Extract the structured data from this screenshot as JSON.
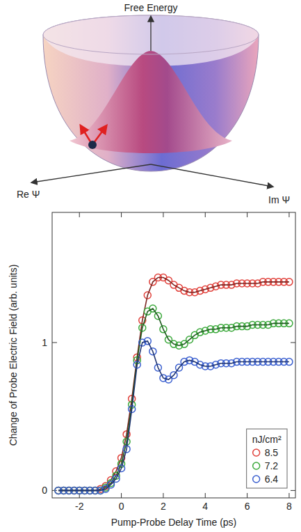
{
  "illustration": {
    "title": "Free Energy",
    "x_label": "Re Ψ",
    "y_label": "Im Ψ"
  },
  "chart_data": {
    "type": "line",
    "x_label": "Pump-Probe Delay Time (ps)",
    "y_label": "Change of Probe Electric Field (arb. units)",
    "x": [
      -3,
      -2.75,
      -2.5,
      -2.25,
      -2,
      -1.75,
      -1.5,
      -1.25,
      -1,
      -0.75,
      -0.5,
      -0.25,
      0,
      0.25,
      0.5,
      0.75,
      1,
      1.25,
      1.5,
      1.75,
      2,
      2.25,
      2.5,
      2.75,
      3,
      3.25,
      3.5,
      3.75,
      4,
      4.25,
      4.5,
      4.75,
      5,
      5.25,
      5.5,
      5.75,
      6,
      6.25,
      6.5,
      6.75,
      7,
      7.25,
      7.5,
      7.75,
      8
    ],
    "series": [
      {
        "name": "8.5",
        "color": "#e0403a",
        "marker": "circle",
        "line_style": "solid",
        "values": [
          0,
          0,
          0,
          0,
          0,
          0,
          0,
          0,
          0.01,
          0.03,
          0.07,
          0.13,
          0.22,
          0.38,
          0.62,
          0.9,
          1.15,
          1.32,
          1.41,
          1.44,
          1.44,
          1.42,
          1.39,
          1.37,
          1.35,
          1.34,
          1.34,
          1.35,
          1.36,
          1.37,
          1.38,
          1.39,
          1.39,
          1.39,
          1.4,
          1.4,
          1.4,
          1.4,
          1.4,
          1.41,
          1.41,
          1.41,
          1.41,
          1.41,
          1.41
        ]
      },
      {
        "name": "7.2",
        "color": "#3aa83a",
        "marker": "circle",
        "line_style": "solid",
        "values": [
          0,
          0,
          0,
          0,
          0,
          0,
          0,
          0,
          0,
          0.02,
          0.05,
          0.1,
          0.18,
          0.33,
          0.58,
          0.88,
          1.1,
          1.21,
          1.23,
          1.18,
          1.09,
          1.02,
          0.99,
          0.98,
          0.99,
          1.02,
          1.05,
          1.07,
          1.08,
          1.09,
          1.09,
          1.1,
          1.1,
          1.1,
          1.11,
          1.11,
          1.11,
          1.12,
          1.12,
          1.12,
          1.12,
          1.13,
          1.13,
          1.13,
          1.13
        ]
      },
      {
        "name": "6.4",
        "color": "#3a5fcf",
        "marker": "circle",
        "line_style": "solid",
        "values": [
          0,
          0,
          0,
          0,
          0,
          0,
          0,
          0,
          0,
          0.01,
          0.04,
          0.08,
          0.15,
          0.28,
          0.55,
          0.85,
          1.0,
          1.01,
          0.94,
          0.83,
          0.76,
          0.75,
          0.78,
          0.83,
          0.87,
          0.88,
          0.87,
          0.85,
          0.84,
          0.84,
          0.85,
          0.86,
          0.86,
          0.86,
          0.87,
          0.87,
          0.87,
          0.87,
          0.87,
          0.87,
          0.87,
          0.87,
          0.87,
          0.87,
          0.87
        ]
      }
    ],
    "legend_title": "nJ/cm²",
    "legend": "lower right",
    "grid": false,
    "xlim": [
      -3.3,
      8.3
    ],
    "ylim": [
      -0.05,
      1.88
    ],
    "xticks": [
      -2,
      0,
      2,
      4,
      6,
      8
    ],
    "yticks": [
      0,
      1
    ]
  }
}
